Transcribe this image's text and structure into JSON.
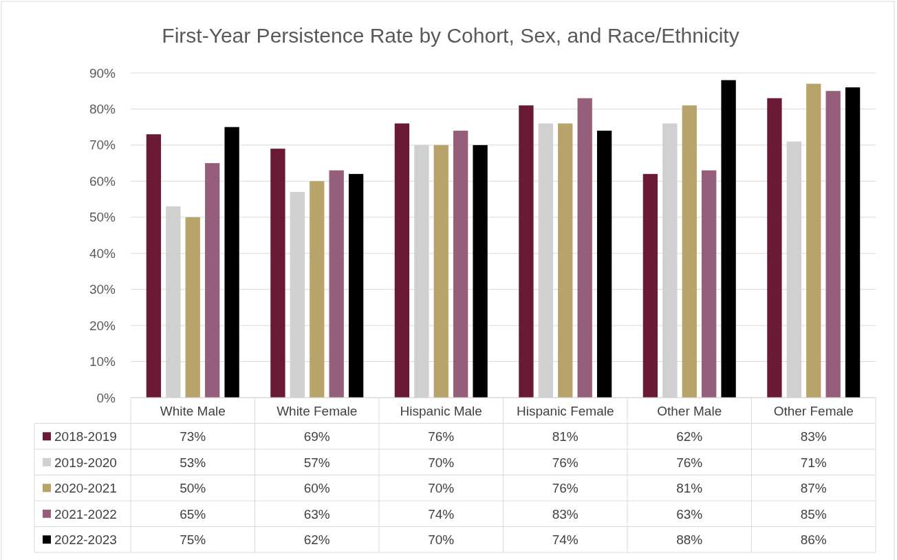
{
  "chart_data": {
    "type": "bar",
    "title": "First-Year Persistence Rate by Cohort, Sex, and Race/Ethnicity",
    "categories": [
      "White Male",
      "White Female",
      "Hispanic Male",
      "Hispanic Female",
      "Other Male",
      "Other Female"
    ],
    "series": [
      {
        "name": "2018-2019",
        "color": "#6b1a35",
        "values": [
          73,
          69,
          76,
          81,
          62,
          83
        ],
        "value_labels": [
          "73%",
          "69%",
          "76%",
          "81%",
          "62%",
          "83%"
        ]
      },
      {
        "name": "2019-2020",
        "color": "#d0d0d0",
        "values": [
          53,
          57,
          70,
          76,
          76,
          71
        ],
        "value_labels": [
          "53%",
          "57%",
          "70%",
          "76%",
          "76%",
          "71%"
        ]
      },
      {
        "name": "2020-2021",
        "color": "#b8a46a",
        "values": [
          50,
          60,
          70,
          76,
          81,
          87
        ],
        "value_labels": [
          "50%",
          "60%",
          "70%",
          "76%",
          "81%",
          "87%"
        ]
      },
      {
        "name": "2021-2022",
        "color": "#955f7c",
        "values": [
          65,
          63,
          74,
          83,
          63,
          85
        ],
        "value_labels": [
          "65%",
          "63%",
          "74%",
          "83%",
          "63%",
          "85%"
        ]
      },
      {
        "name": "2022-2023",
        "color": "#000000",
        "values": [
          75,
          62,
          70,
          74,
          88,
          86
        ],
        "value_labels": [
          "75%",
          "62%",
          "70%",
          "74%",
          "88%",
          "86%"
        ]
      }
    ],
    "ylim": [
      0,
      90
    ],
    "yticks": [
      {
        "value": 0,
        "label": "0%"
      },
      {
        "value": 10,
        "label": "10%"
      },
      {
        "value": 20,
        "label": "20%"
      },
      {
        "value": 30,
        "label": "30%"
      },
      {
        "value": 40,
        "label": "40%"
      },
      {
        "value": 50,
        "label": "50%"
      },
      {
        "value": 60,
        "label": "60%"
      },
      {
        "value": 70,
        "label": "70%"
      },
      {
        "value": 80,
        "label": "80%"
      },
      {
        "value": 90,
        "label": "90%"
      }
    ],
    "grid": "y",
    "legend": "bottom"
  }
}
